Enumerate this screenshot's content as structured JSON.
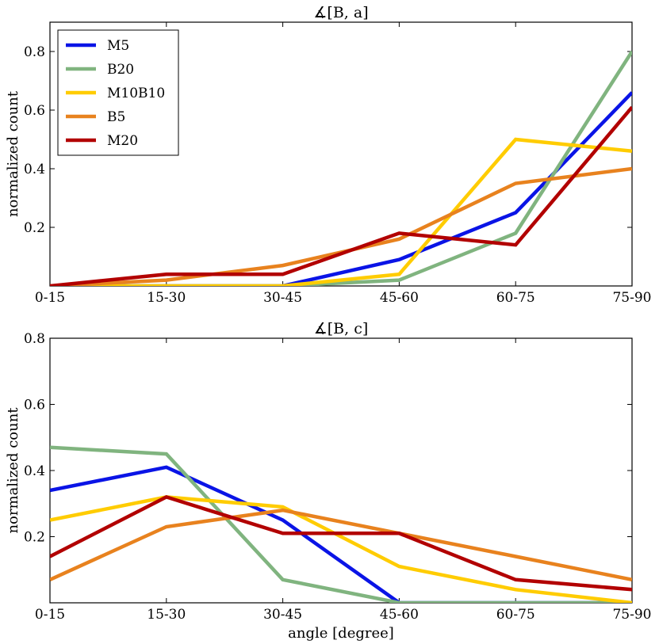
{
  "chart_data": [
    {
      "type": "line",
      "title": "∡[B, a]",
      "xlabel": "",
      "ylabel": "normalized count",
      "categories": [
        "0-15",
        "15-30",
        "30-45",
        "45-60",
        "60-75",
        "75-90"
      ],
      "ylim": [
        0,
        0.9
      ],
      "yticks": [
        "0.2",
        "0.4",
        "0.6",
        "0.8"
      ],
      "legend": "top-left",
      "series": [
        {
          "name": "M5",
          "color": "#0a14e6",
          "values": [
            0.0,
            0.0,
            0.0,
            0.09,
            0.25,
            0.66
          ]
        },
        {
          "name": "B20",
          "color": "#80b47f",
          "values": [
            0.0,
            0.0,
            0.0,
            0.02,
            0.18,
            0.8
          ]
        },
        {
          "name": "M10B10",
          "color": "#ffcc00",
          "values": [
            0.0,
            0.0,
            0.0,
            0.04,
            0.5,
            0.46
          ]
        },
        {
          "name": "B5",
          "color": "#e8821e",
          "values": [
            0.0,
            0.02,
            0.07,
            0.16,
            0.35,
            0.4
          ]
        },
        {
          "name": "M20",
          "color": "#b20000",
          "values": [
            0.0,
            0.04,
            0.04,
            0.18,
            0.14,
            0.61
          ]
        }
      ]
    },
    {
      "type": "line",
      "title": "∡[B, c]",
      "xlabel": "angle [degree]",
      "ylabel": "normalized count",
      "categories": [
        "0-15",
        "15-30",
        "30-45",
        "45-60",
        "60-75",
        "75-90"
      ],
      "ylim": [
        0,
        0.8
      ],
      "yticks": [
        "0.2",
        "0.4",
        "0.6",
        "0.8"
      ],
      "series": [
        {
          "name": "M5",
          "color": "#0a14e6",
          "values": [
            0.34,
            0.41,
            0.25,
            0.0,
            0.0,
            0.0
          ]
        },
        {
          "name": "B20",
          "color": "#80b47f",
          "values": [
            0.47,
            0.45,
            0.07,
            0.0,
            0.0,
            0.0
          ]
        },
        {
          "name": "M10B10",
          "color": "#ffcc00",
          "values": [
            0.25,
            0.32,
            0.29,
            0.11,
            0.04,
            0.0
          ]
        },
        {
          "name": "B5",
          "color": "#e8821e",
          "values": [
            0.07,
            0.23,
            0.28,
            0.21,
            0.14,
            0.07
          ]
        },
        {
          "name": "M20",
          "color": "#b20000",
          "values": [
            0.14,
            0.32,
            0.21,
            0.21,
            0.07,
            0.04
          ]
        }
      ]
    }
  ]
}
